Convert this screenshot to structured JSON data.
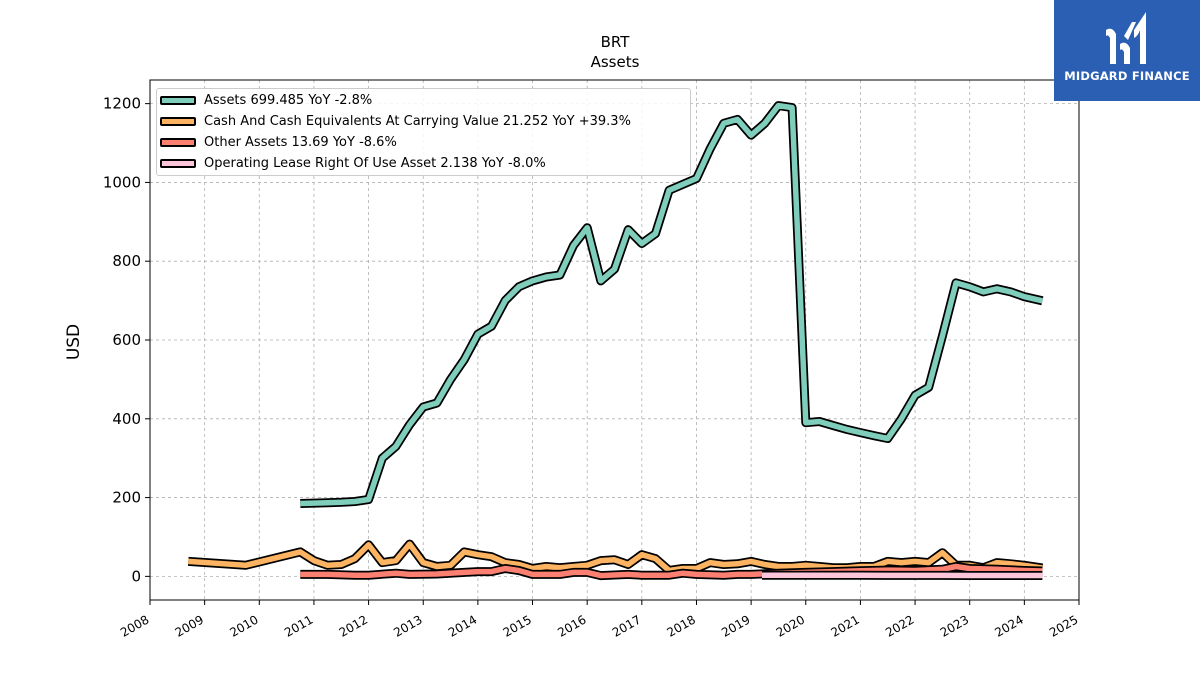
{
  "brand": {
    "name": "MIDGARD FINANCE",
    "bg_color": "#2b5fb4"
  },
  "chart_data": {
    "type": "line",
    "title": "BRT",
    "subtitle": "Assets",
    "ylabel": "USD",
    "xlabel": "",
    "xlim": [
      2008.0,
      2025.0
    ],
    "ylim": [
      -60,
      1260
    ],
    "x_ticks": [
      2008,
      2009,
      2010,
      2011,
      2012,
      2013,
      2014,
      2015,
      2016,
      2017,
      2018,
      2019,
      2020,
      2021,
      2022,
      2023,
      2024,
      2025
    ],
    "y_ticks": [
      0,
      200,
      400,
      600,
      800,
      1000,
      1200
    ],
    "grid": true,
    "legend_placement": "upper-left",
    "series": [
      {
        "name": "Assets",
        "legend_label": "Assets  699.485 YoY -2.8%",
        "color": "#7fcdbb",
        "x": [
          2010.75,
          2011.0,
          2011.25,
          2011.5,
          2011.75,
          2012.0,
          2012.25,
          2012.5,
          2012.75,
          2013.0,
          2013.25,
          2013.5,
          2013.75,
          2014.0,
          2014.25,
          2014.5,
          2014.75,
          2015.0,
          2015.25,
          2015.5,
          2015.75,
          2016.0,
          2016.25,
          2016.5,
          2016.75,
          2017.0,
          2017.25,
          2017.5,
          2017.75,
          2018.0,
          2018.25,
          2018.5,
          2018.75,
          2019.0,
          2019.25,
          2019.5,
          2019.75,
          2020.0,
          2020.25,
          2020.5,
          2020.75,
          2021.0,
          2021.25,
          2021.5,
          2021.75,
          2022.0,
          2022.25,
          2022.5,
          2022.75,
          2023.0,
          2023.25,
          2023.5,
          2023.75,
          2024.0,
          2024.33
        ],
        "values": [
          185,
          186,
          187,
          188,
          190,
          195,
          300,
          330,
          385,
          430,
          440,
          500,
          550,
          615,
          635,
          700,
          735,
          750,
          760,
          765,
          840,
          885,
          750,
          780,
          880,
          845,
          870,
          980,
          995,
          1010,
          1085,
          1150,
          1160,
          1120,
          1150,
          1195,
          1190,
          390,
          393,
          383,
          373,
          365,
          357,
          350,
          400,
          460,
          480,
          610,
          745,
          735,
          722,
          730,
          722,
          710,
          699.485
        ]
      },
      {
        "name": "Cash And Cash Equivalents At Carrying Value",
        "legend_label": "Cash And Cash Equivalents At Carrying Value  21.252 YoY +39.3%",
        "color": "#fdb462",
        "x": [
          2008.7,
          2009.75,
          2010.75,
          2011.0,
          2011.25,
          2011.5,
          2011.75,
          2012.0,
          2012.25,
          2012.5,
          2012.75,
          2013.0,
          2013.25,
          2013.5,
          2013.75,
          2014.0,
          2014.25,
          2014.5,
          2014.75,
          2015.0,
          2015.25,
          2015.5,
          2015.75,
          2016.0,
          2016.25,
          2016.5,
          2016.75,
          2017.0,
          2017.25,
          2017.5,
          2017.75,
          2018.0,
          2018.25,
          2018.5,
          2018.75,
          2019.0,
          2019.25,
          2019.5,
          2019.75,
          2020.0,
          2020.25,
          2020.5,
          2020.75,
          2021.0,
          2021.25,
          2021.5,
          2021.75,
          2022.0,
          2022.25,
          2022.5,
          2022.75,
          2023.0,
          2023.25,
          2023.5,
          2023.75,
          2024.0,
          2024.33
        ],
        "values": [
          38,
          28,
          62,
          40,
          28,
          30,
          45,
          80,
          35,
          40,
          82,
          35,
          25,
          28,
          62,
          55,
          50,
          35,
          30,
          20,
          25,
          22,
          25,
          28,
          40,
          42,
          30,
          55,
          45,
          15,
          20,
          20,
          35,
          30,
          32,
          38,
          30,
          25,
          25,
          28,
          25,
          22,
          22,
          25,
          25,
          38,
          35,
          38,
          35,
          60,
          28,
          28,
          22,
          35,
          32,
          28,
          21.252
        ]
      },
      {
        "name": "Other Assets",
        "legend_label": "Other Assets  13.69 YoY -8.6%",
        "color": "#fb8072",
        "x": [
          2010.75,
          2011.25,
          2011.75,
          2012.0,
          2012.5,
          2012.75,
          2013.25,
          2013.75,
          2014.0,
          2014.25,
          2014.5,
          2014.75,
          2015.0,
          2015.5,
          2015.75,
          2016.0,
          2016.25,
          2016.75,
          2017.0,
          2017.5,
          2017.75,
          2018.0,
          2018.5,
          2018.75,
          2019.0,
          2019.5,
          2020.0,
          2020.5,
          2021.0,
          2021.5,
          2022.0,
          2022.5,
          2022.75,
          2023.0,
          2023.5,
          2024.0,
          2024.33
        ],
        "values": [
          5,
          5,
          3,
          3,
          8,
          5,
          6,
          10,
          12,
          12,
          20,
          15,
          5,
          5,
          10,
          10,
          2,
          5,
          3,
          3,
          8,
          5,
          3,
          5,
          5,
          8,
          10,
          12,
          14,
          16,
          15,
          18,
          25,
          20,
          18,
          15,
          13.69
        ]
      },
      {
        "name": "Operating Lease Right Of Use Asset",
        "legend_label": "Operating Lease Right Of Use Asset  2.138 YoY -8.0%",
        "color": "#fcc5da",
        "x": [
          2019.2,
          2019.5,
          2020.0,
          2020.5,
          2021.0,
          2021.5,
          2022.0,
          2022.5,
          2023.0,
          2023.5,
          2024.0,
          2024.33
        ],
        "values": [
          3.0,
          2.9,
          2.8,
          2.7,
          2.6,
          2.5,
          2.4,
          2.35,
          2.3,
          2.25,
          2.2,
          2.138
        ]
      }
    ]
  }
}
